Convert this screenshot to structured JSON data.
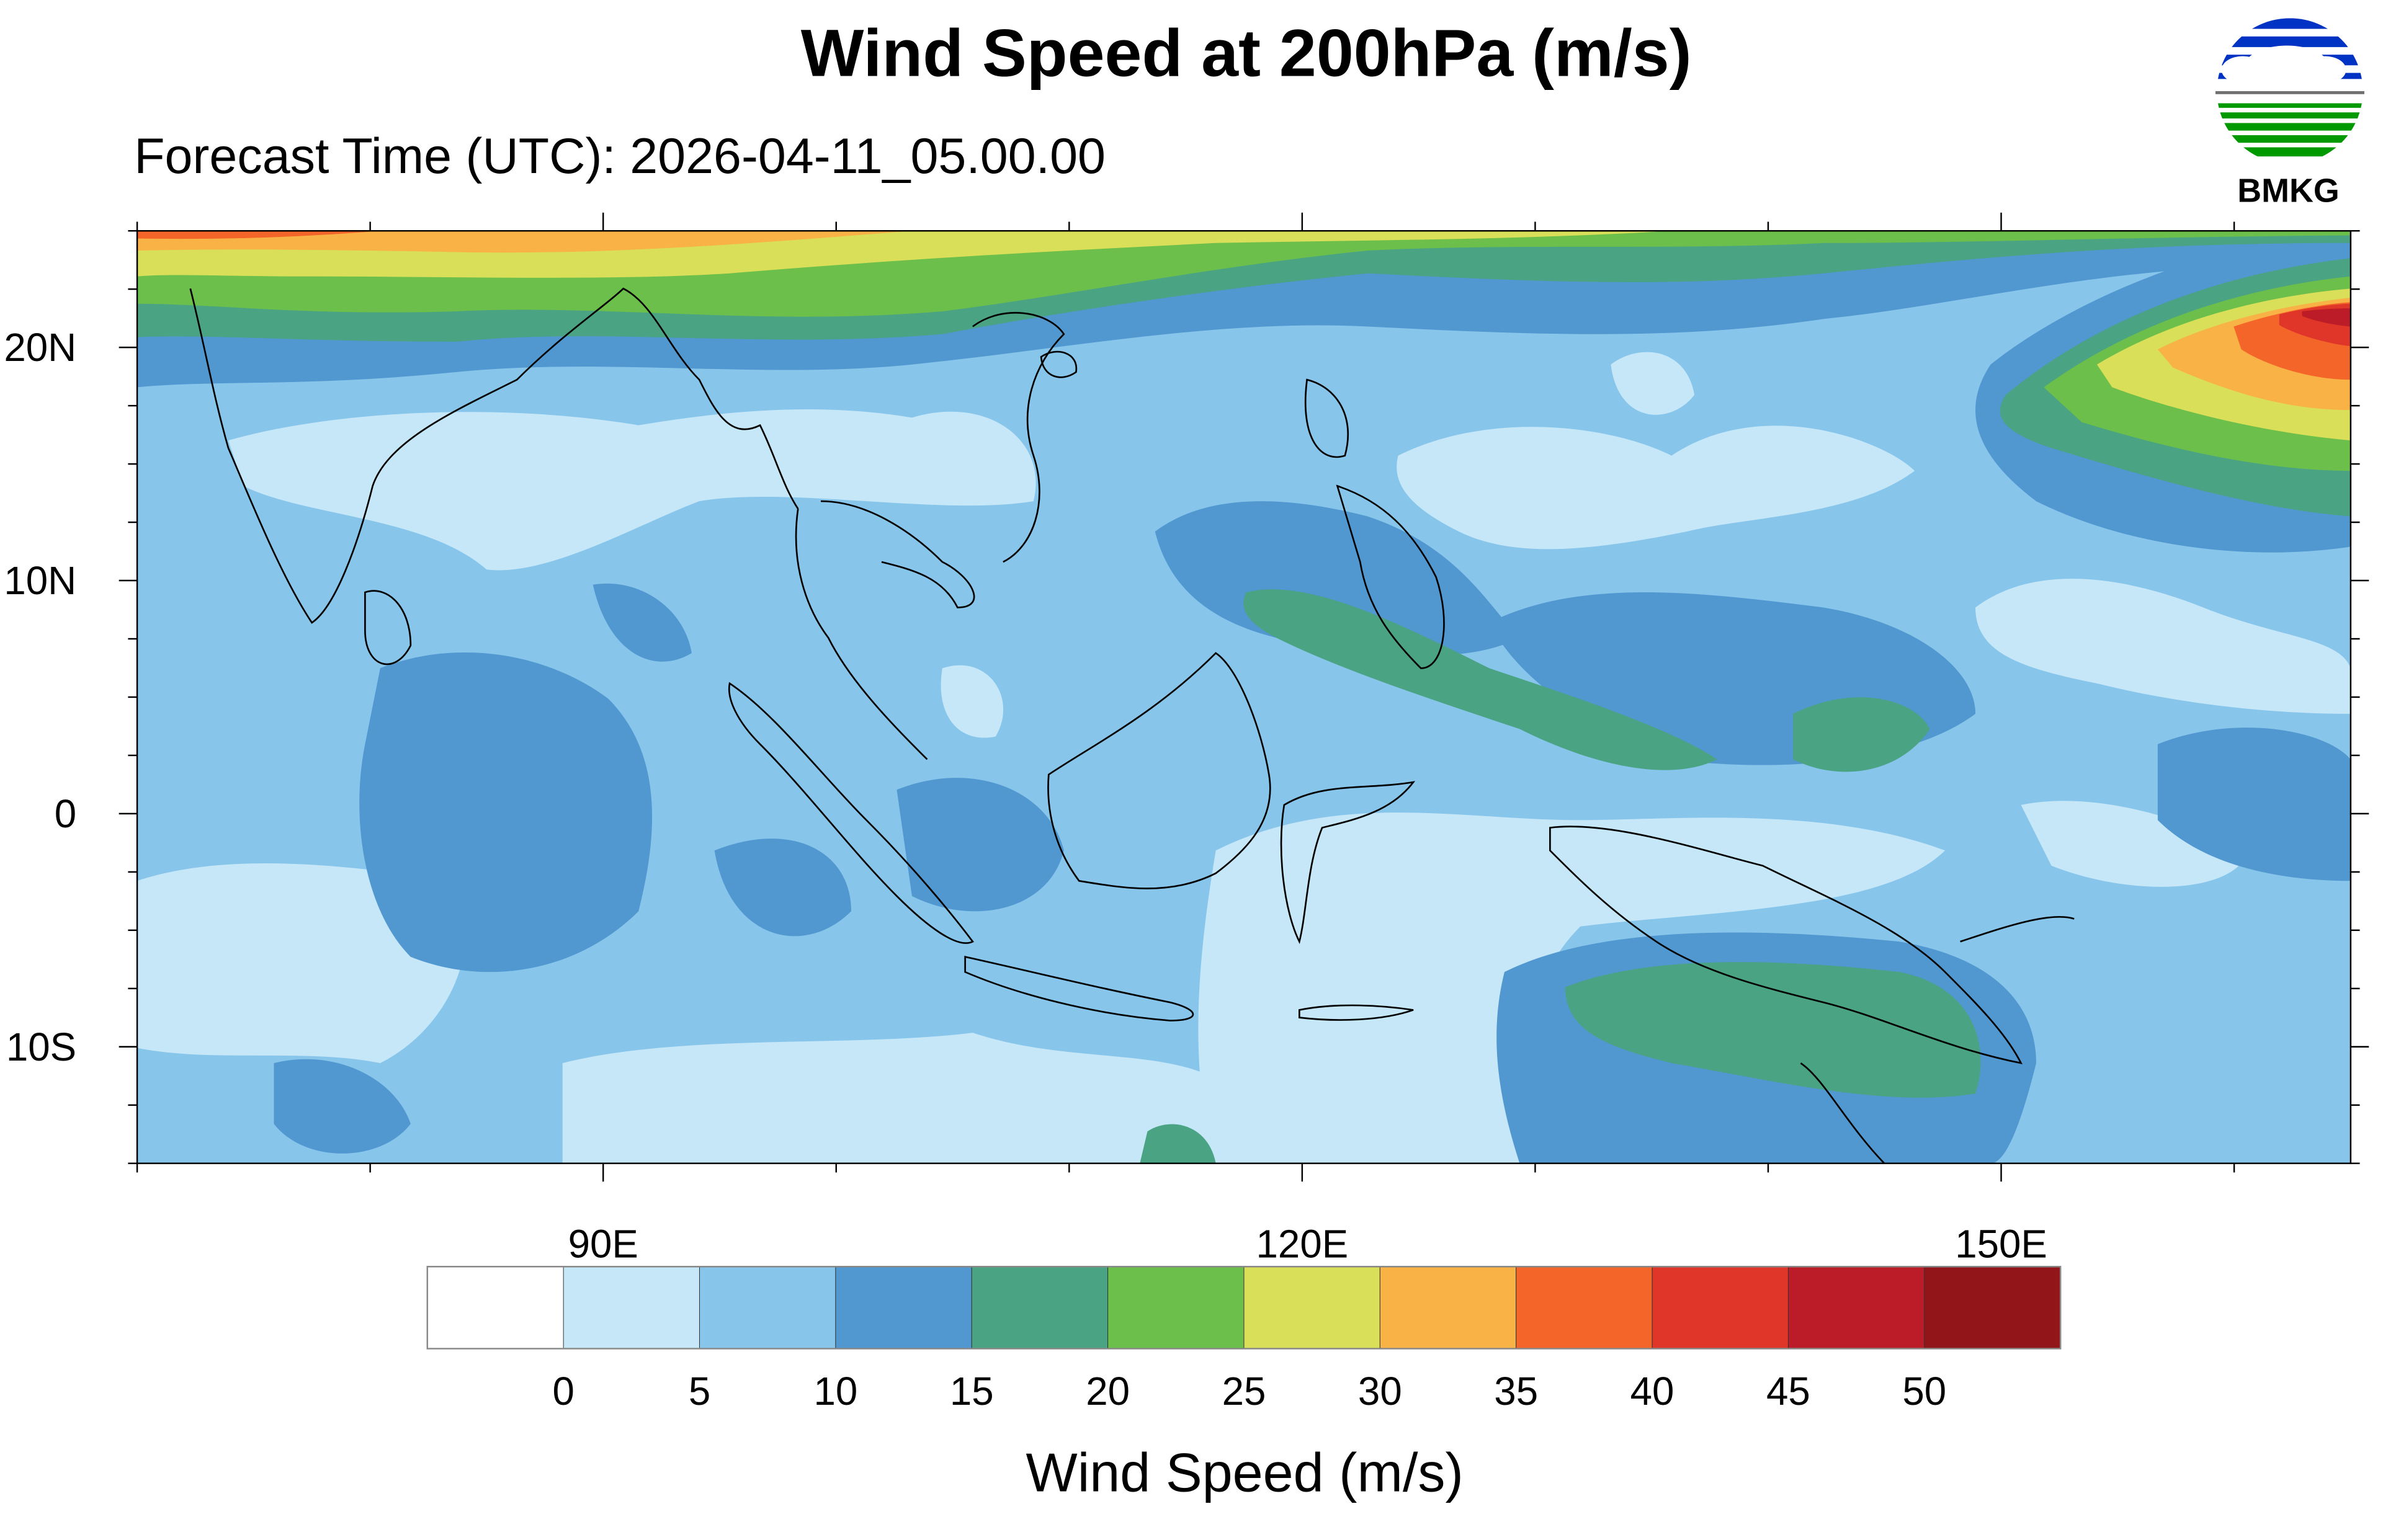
{
  "header": {
    "title": "Wind Speed at 200hPa (m/s)",
    "subtitle": "Forecast Time (UTC): 2026-04-11_05.00.00",
    "logo_text": "BMKG"
  },
  "chart_data": {
    "type": "heatmap",
    "title": "Wind Speed at 200hPa (m/s)",
    "subtitle": "Forecast Time (UTC): 2026-04-11_05.00.00",
    "x_range": [
      70,
      165
    ],
    "y_range": [
      -15,
      25
    ],
    "lon_ticks": [
      {
        "value": 90,
        "label": "90E"
      },
      {
        "value": 120,
        "label": "120E"
      },
      {
        "value": 150,
        "label": "150E"
      }
    ],
    "lat_ticks": [
      {
        "value": 20,
        "label": "20N"
      },
      {
        "value": 10,
        "label": "10N"
      },
      {
        "value": 0,
        "label": "0"
      },
      {
        "value": -10,
        "label": "10S"
      }
    ],
    "colorbar": {
      "title": "Wind Speed (m/s)",
      "levels": [
        "0",
        "5",
        "10",
        "15",
        "20",
        "25",
        "30",
        "35",
        "40",
        "45",
        "50"
      ],
      "colors": [
        "#FFFFFF",
        "#C5E7F8",
        "#87C5EB",
        "#5197D0",
        "#4AA383",
        "#6CBF4B",
        "#D9DF58",
        "#F9B245",
        "#F4652A",
        "#DF3629",
        "#BC1C27",
        "#921619"
      ]
    }
  }
}
